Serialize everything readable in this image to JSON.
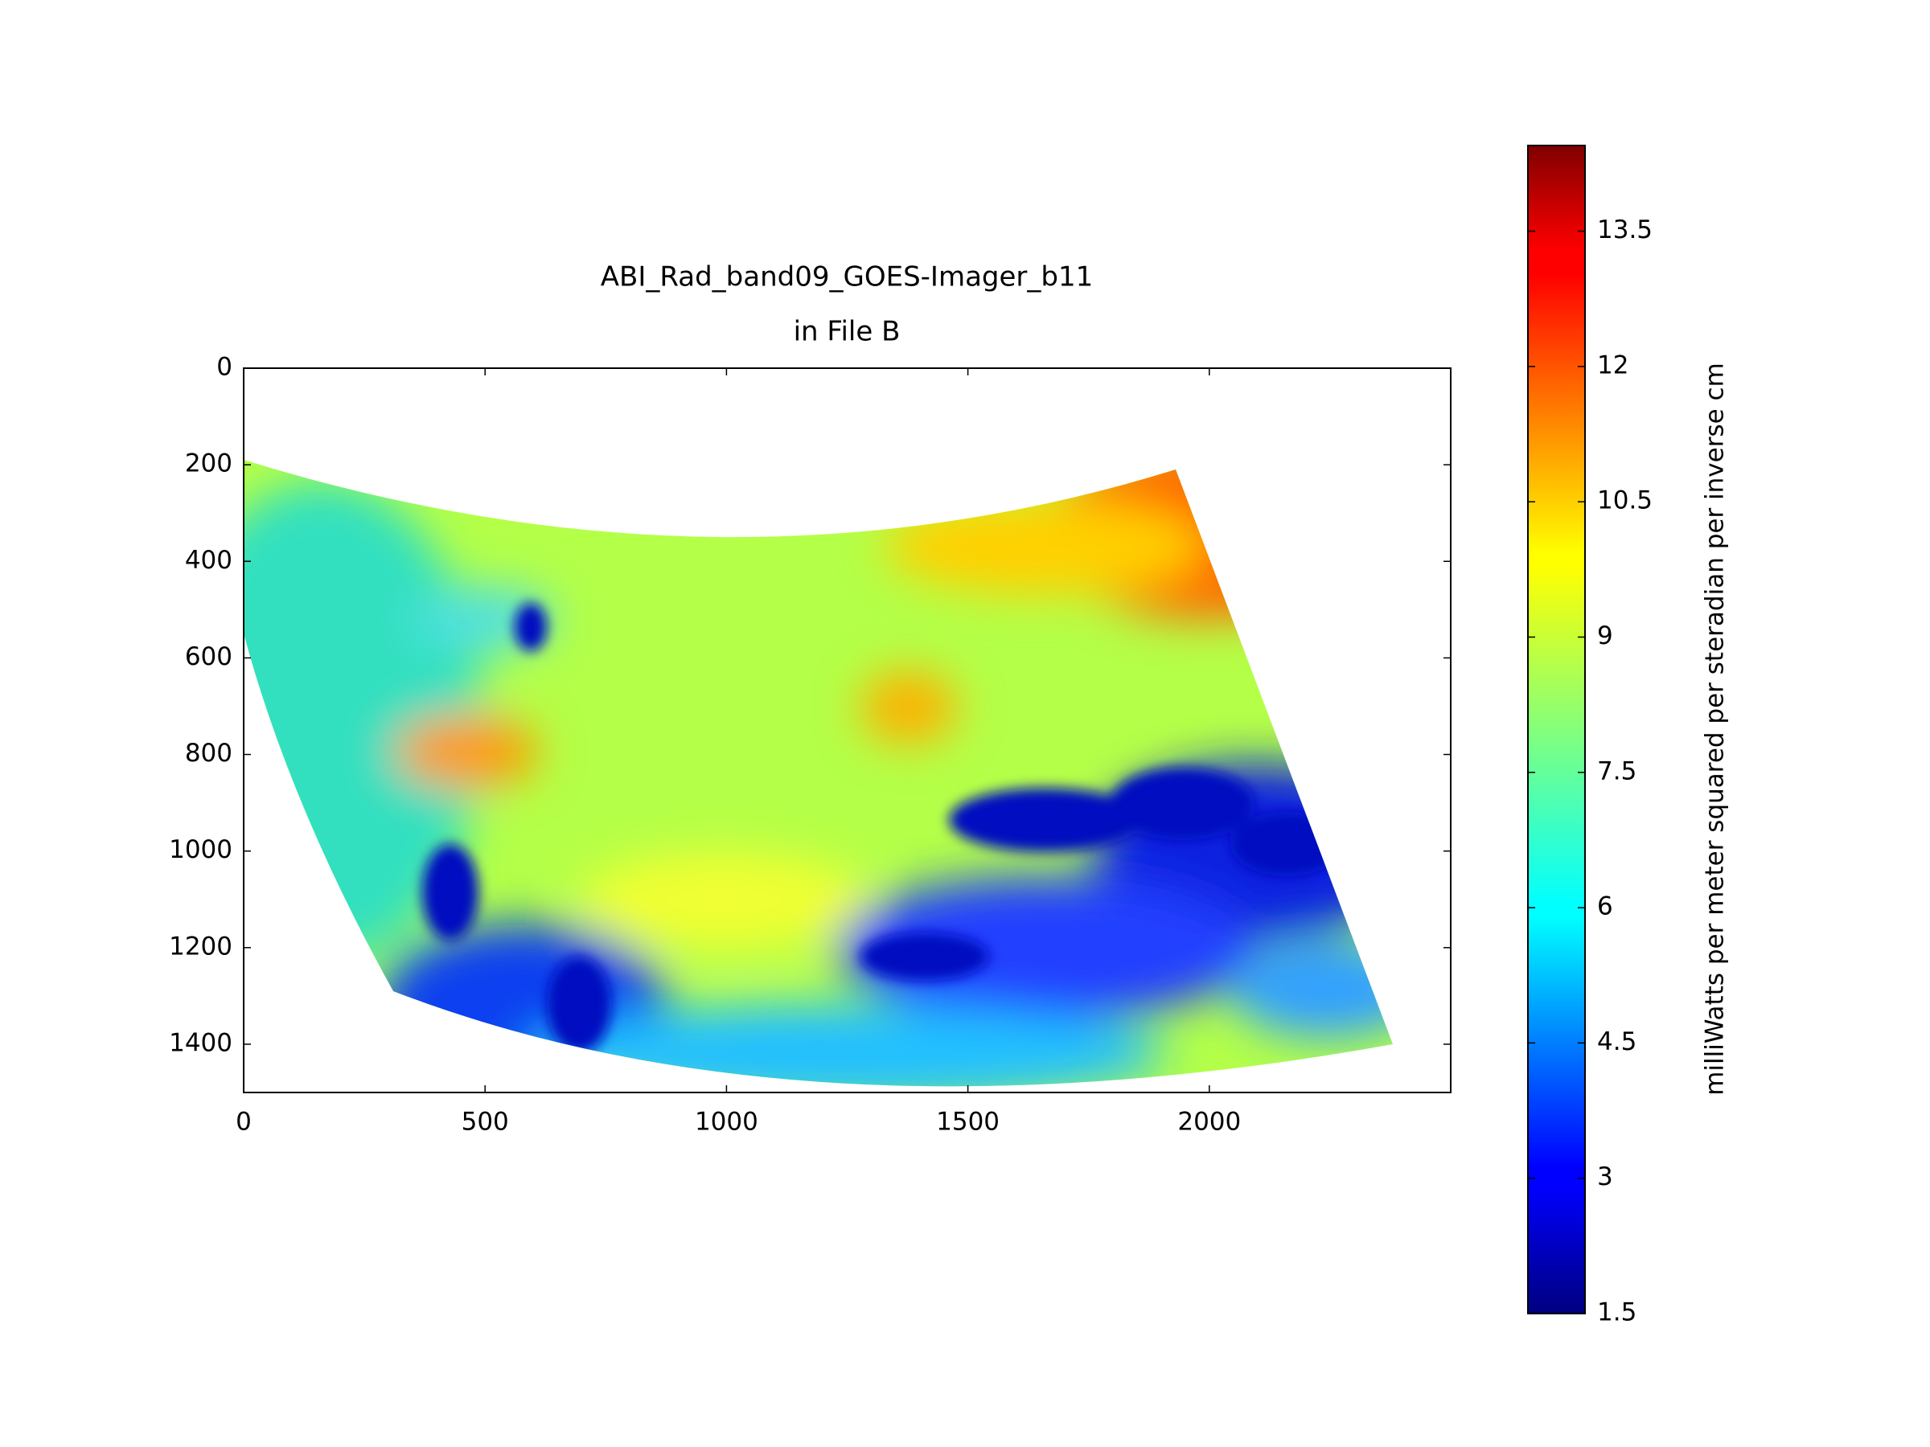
{
  "chart_data": {
    "type": "heatmap",
    "title": [
      "ABI_Rad_band09_GOES-Imager_b11",
      "in File B"
    ],
    "xlim": [
      0,
      2500
    ],
    "xticks": [
      0,
      500,
      1000,
      1500,
      2000
    ],
    "ylim": [
      1500,
      0
    ],
    "yticks": [
      0,
      200,
      400,
      600,
      800,
      1000,
      1200,
      1400
    ],
    "colorbar": {
      "label": "milliWatts per meter squared per steradian per inverse cm",
      "lim": [
        1.5,
        14.45
      ],
      "ticks": [
        1.5,
        3,
        4.5,
        6,
        7.5,
        9,
        10.5,
        12,
        13.5
      ],
      "colormap": "jet"
    }
  }
}
